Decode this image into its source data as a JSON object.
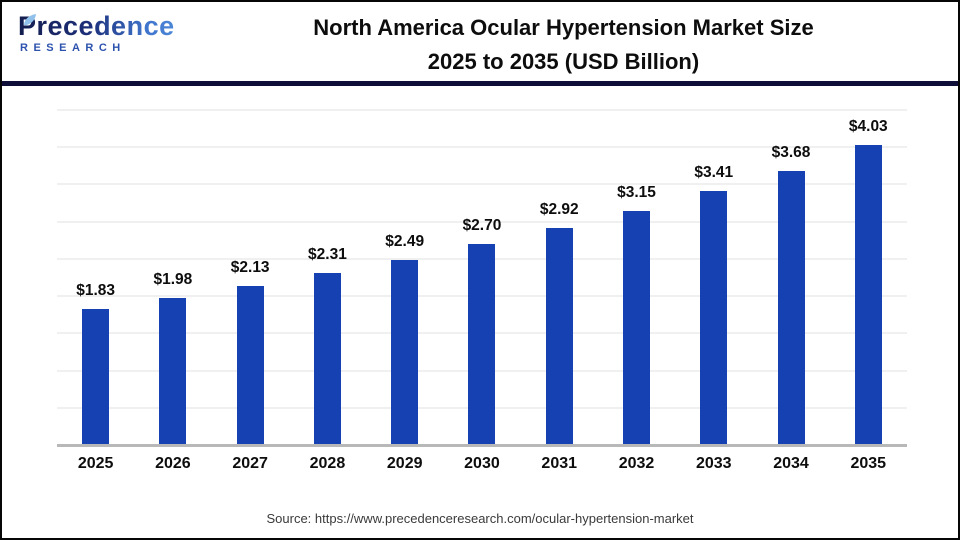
{
  "header": {
    "logo_line1": "Precedence",
    "logo_line2": "RESEARCH",
    "title_line1": "North America Ocular Hypertension Market Size",
    "title_line2": "2025 to 2035 (USD Billion)"
  },
  "chart_data": {
    "type": "bar",
    "title": "North America Ocular Hypertension Market Size 2025 to 2035 (USD Billion)",
    "categories": [
      "2025",
      "2026",
      "2027",
      "2028",
      "2029",
      "2030",
      "2031",
      "2032",
      "2033",
      "2034",
      "2035"
    ],
    "values": [
      1.83,
      1.98,
      2.13,
      2.31,
      2.49,
      2.7,
      2.92,
      3.15,
      3.41,
      3.68,
      4.03
    ],
    "value_labels": [
      "$1.83",
      "$1.98",
      "$2.13",
      "$2.31",
      "$2.49",
      "$2.70",
      "$2.92",
      "$3.15",
      "$3.41",
      "$3.68",
      "$4.03"
    ],
    "xlabel": "",
    "ylabel": "USD Billion",
    "ylim": [
      0,
      4.5
    ],
    "gridline_step": 0.5,
    "grid": true,
    "legend": false,
    "bar_color": "#1541b2"
  },
  "footer": {
    "source": "Source: https://www.precedenceresearch.com/ocular-hypertension-market"
  },
  "colors": {
    "bar_color": "#1541b2",
    "divider_navy": "#0e0e38",
    "axis_grey": "#b8b8b8",
    "grid_grey": "#f0f0f0",
    "research_blue": "#2d52ae",
    "text_dark": "#0d0d0d",
    "source_grey": "#3a3a3a"
  }
}
